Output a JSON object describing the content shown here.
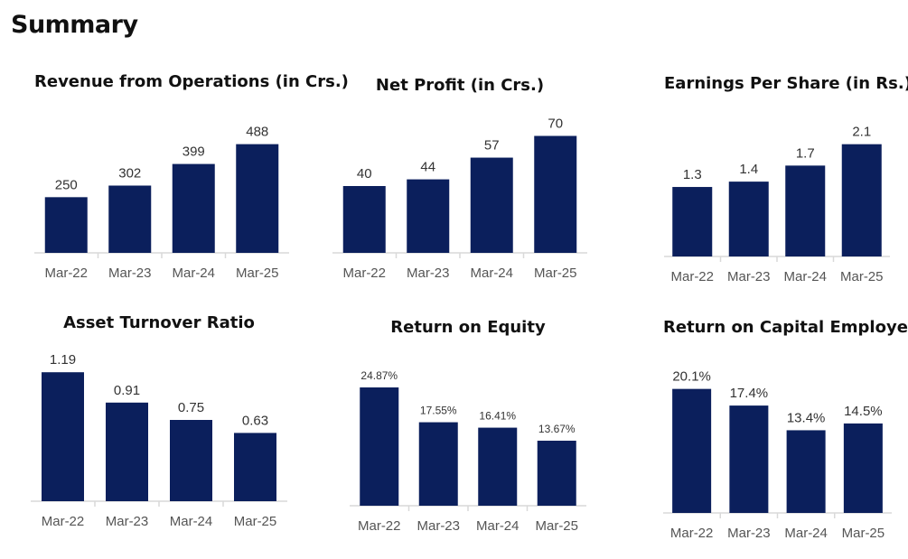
{
  "page": {
    "title": "Summary"
  },
  "colors": {
    "bar": "#0b1f5c",
    "axis": "#d9d9d9",
    "tick_text": "#555555",
    "label_text": "#333333"
  },
  "chart_data": [
    {
      "type": "bar",
      "title": "Revenue from Operations (in Crs.)",
      "categories": [
        "Mar-22",
        "Mar-23",
        "Mar-24",
        "Mar-25"
      ],
      "values": [
        250,
        302,
        399,
        488
      ],
      "labels": [
        "250",
        "302",
        "399",
        "488"
      ],
      "ylim": [
        0,
        600
      ],
      "grid": false,
      "legend": "none"
    },
    {
      "type": "bar",
      "title": "Net Profit (in Crs.)",
      "categories": [
        "Mar-22",
        "Mar-23",
        "Mar-24",
        "Mar-25"
      ],
      "values": [
        40,
        44,
        57,
        70
      ],
      "labels": [
        "40",
        "44",
        "57",
        "70"
      ],
      "ylim": [
        0,
        80
      ],
      "grid": false,
      "legend": "none"
    },
    {
      "type": "bar",
      "title": "Earnings Per Share (in Rs.)",
      "categories": [
        "Mar-22",
        "Mar-23",
        "Mar-24",
        "Mar-25"
      ],
      "values": [
        1.3,
        1.4,
        1.7,
        2.1
      ],
      "labels": [
        "1.3",
        "1.4",
        "1.7",
        "2.1"
      ],
      "ylim": [
        0,
        2.5
      ],
      "grid": false,
      "legend": "none"
    },
    {
      "type": "bar",
      "title": "Asset Turnover Ratio",
      "categories": [
        "Mar-22",
        "Mar-23",
        "Mar-24",
        "Mar-25"
      ],
      "values": [
        1.19,
        0.91,
        0.75,
        0.63
      ],
      "labels": [
        "1.19",
        "0.91",
        "0.75",
        "0.63"
      ],
      "ylim": [
        0,
        1.4
      ],
      "grid": false,
      "legend": "none"
    },
    {
      "type": "bar",
      "title": "Return on Equity",
      "categories": [
        "Mar-22",
        "Mar-23",
        "Mar-24",
        "Mar-25"
      ],
      "values": [
        24.87,
        17.55,
        16.41,
        13.67
      ],
      "labels": [
        "24.87%",
        "17.55%",
        "16.41%",
        "13.67%"
      ],
      "ylim": [
        0,
        30
      ],
      "grid": false,
      "legend": "none"
    },
    {
      "type": "bar",
      "title": "Return on Capital Employed",
      "categories": [
        "Mar-22",
        "Mar-23",
        "Mar-24",
        "Mar-25"
      ],
      "values": [
        20.1,
        17.4,
        13.4,
        14.5
      ],
      "labels": [
        "20.1%",
        "17.4%",
        "13.4%",
        "14.5%"
      ],
      "ylim": [
        0,
        24
      ],
      "grid": false,
      "legend": "none"
    }
  ]
}
